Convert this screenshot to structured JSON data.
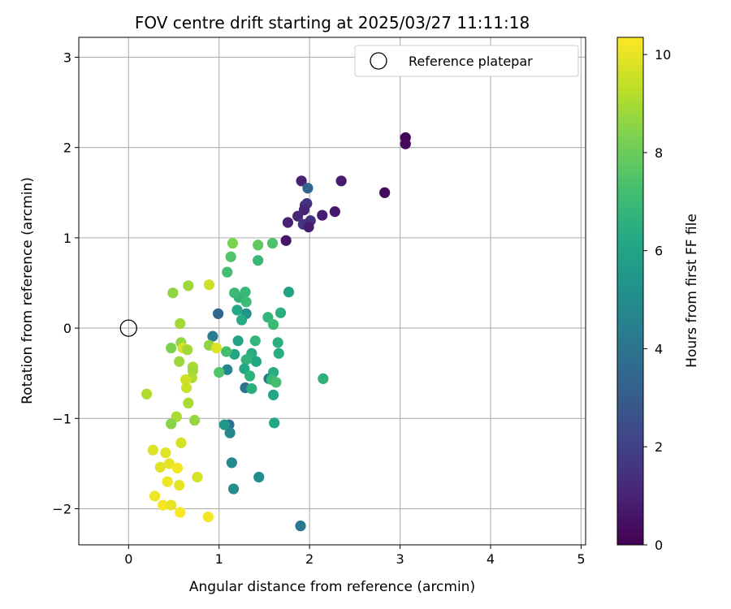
{
  "chart_data": {
    "type": "scatter",
    "title": "FOV centre drift starting at 2025/03/27 11:11:18",
    "xlabel": "Angular distance from reference (arcmin)",
    "ylabel": "Rotation from reference (arcmin)",
    "xlim": [
      -0.55,
      5.05
    ],
    "ylim": [
      -2.4,
      3.22
    ],
    "xticks": [
      0,
      1,
      2,
      3,
      4,
      5
    ],
    "xtick_labels": [
      "0",
      "1",
      "2",
      "3",
      "4",
      "5"
    ],
    "yticks": [
      -2,
      -1,
      0,
      1,
      2,
      3
    ],
    "ytick_labels": [
      "−2",
      "−1",
      "0",
      "1",
      "2",
      "3"
    ],
    "grid": true,
    "legend": {
      "placement": "top-right",
      "entries": [
        "Reference platepar"
      ]
    },
    "reference_point": {
      "name": "Reference platepar",
      "x": 0,
      "y": 0,
      "marker": "hollow-circle"
    },
    "colorbar": {
      "label": "Hours from first FF file",
      "colormap": "viridis",
      "range": [
        0,
        10.35
      ],
      "ticks": [
        0,
        2,
        4,
        6,
        8,
        10
      ],
      "tick_labels": [
        "0",
        "2",
        "4",
        "6",
        "8",
        "10"
      ]
    },
    "series": [
      {
        "color_by": "hours",
        "points": [
          {
            "x": 3.06,
            "y": 2.11,
            "c": 0.1
          },
          {
            "x": 3.06,
            "y": 2.04,
            "c": 0.2
          },
          {
            "x": 2.83,
            "y": 1.5,
            "c": 0.3
          },
          {
            "x": 2.35,
            "y": 1.63,
            "c": 0.8
          },
          {
            "x": 2.28,
            "y": 1.29,
            "c": 0.7
          },
          {
            "x": 2.14,
            "y": 1.25,
            "c": 0.9
          },
          {
            "x": 1.91,
            "y": 1.63,
            "c": 1.0
          },
          {
            "x": 1.95,
            "y": 1.36,
            "c": 1.3
          },
          {
            "x": 1.97,
            "y": 1.38,
            "c": 1.5
          },
          {
            "x": 1.94,
            "y": 1.31,
            "c": 1.1
          },
          {
            "x": 1.87,
            "y": 1.24,
            "c": 1.2
          },
          {
            "x": 2.01,
            "y": 1.19,
            "c": 1.4
          },
          {
            "x": 1.93,
            "y": 1.15,
            "c": 1.6
          },
          {
            "x": 1.99,
            "y": 1.12,
            "c": 0.8
          },
          {
            "x": 1.76,
            "y": 1.17,
            "c": 1.0
          },
          {
            "x": 1.74,
            "y": 0.97,
            "c": 0.6
          },
          {
            "x": 1.98,
            "y": 1.55,
            "c": 3.3
          },
          {
            "x": 0.99,
            "y": 0.16,
            "c": 3.4
          },
          {
            "x": 1.9,
            "y": -2.19,
            "c": 4.0
          },
          {
            "x": 0.93,
            "y": -0.09,
            "c": 4.3
          },
          {
            "x": 1.29,
            "y": -0.66,
            "c": 3.9
          },
          {
            "x": 1.11,
            "y": -1.07,
            "c": 3.8
          },
          {
            "x": 1.55,
            "y": -0.56,
            "c": 4.2
          },
          {
            "x": 1.12,
            "y": -1.16,
            "c": 4.8
          },
          {
            "x": 1.14,
            "y": -1.49,
            "c": 4.9
          },
          {
            "x": 1.16,
            "y": -1.78,
            "c": 5.0
          },
          {
            "x": 1.44,
            "y": -1.65,
            "c": 4.9
          },
          {
            "x": 1.06,
            "y": -1.07,
            "c": 5.4
          },
          {
            "x": 1.09,
            "y": -0.46,
            "c": 4.7
          },
          {
            "x": 1.21,
            "y": -0.14,
            "c": 6.0
          },
          {
            "x": 1.17,
            "y": -0.29,
            "c": 6.1
          },
          {
            "x": 1.3,
            "y": 0.16,
            "c": 5.2
          },
          {
            "x": 1.25,
            "y": 0.09,
            "c": 6.3
          },
          {
            "x": 1.2,
            "y": 0.2,
            "c": 6.2
          },
          {
            "x": 1.22,
            "y": 0.34,
            "c": 6.6
          },
          {
            "x": 1.17,
            "y": 0.39,
            "c": 7.0
          },
          {
            "x": 1.29,
            "y": 0.4,
            "c": 6.9
          },
          {
            "x": 1.3,
            "y": 0.29,
            "c": 7.1
          },
          {
            "x": 1.09,
            "y": 0.62,
            "c": 7.2
          },
          {
            "x": 1.13,
            "y": 0.79,
            "c": 7.5
          },
          {
            "x": 1.15,
            "y": 0.94,
            "c": 8.3
          },
          {
            "x": 1.43,
            "y": 0.92,
            "c": 7.8
          },
          {
            "x": 1.59,
            "y": 0.94,
            "c": 7.4
          },
          {
            "x": 1.43,
            "y": 0.75,
            "c": 6.9
          },
          {
            "x": 1.77,
            "y": 0.4,
            "c": 6.0
          },
          {
            "x": 1.68,
            "y": 0.17,
            "c": 6.5
          },
          {
            "x": 1.54,
            "y": 0.12,
            "c": 6.8
          },
          {
            "x": 1.6,
            "y": 0.04,
            "c": 7.0
          },
          {
            "x": 1.4,
            "y": -0.14,
            "c": 6.8
          },
          {
            "x": 1.65,
            "y": -0.16,
            "c": 6.5
          },
          {
            "x": 1.66,
            "y": -0.28,
            "c": 6.4
          },
          {
            "x": 1.36,
            "y": -0.28,
            "c": 6.3
          },
          {
            "x": 1.34,
            "y": -0.33,
            "c": 6.5
          },
          {
            "x": 1.41,
            "y": -0.37,
            "c": 6.2
          },
          {
            "x": 1.3,
            "y": -0.35,
            "c": 6.7
          },
          {
            "x": 1.28,
            "y": -0.45,
            "c": 6.2
          },
          {
            "x": 1.34,
            "y": -0.53,
            "c": 6.6
          },
          {
            "x": 1.6,
            "y": -0.49,
            "c": 6.4
          },
          {
            "x": 1.58,
            "y": -0.57,
            "c": 6.9
          },
          {
            "x": 1.63,
            "y": -0.6,
            "c": 7.2
          },
          {
            "x": 1.36,
            "y": -0.67,
            "c": 6.5
          },
          {
            "x": 1.6,
            "y": -0.74,
            "c": 6.1
          },
          {
            "x": 1.61,
            "y": -1.05,
            "c": 6.2
          },
          {
            "x": 2.15,
            "y": -0.56,
            "c": 6.6
          },
          {
            "x": 1.0,
            "y": -0.49,
            "c": 7.5
          },
          {
            "x": 1.08,
            "y": -0.26,
            "c": 7.2
          },
          {
            "x": 0.89,
            "y": -0.19,
            "c": 8.6
          },
          {
            "x": 0.97,
            "y": -0.22,
            "c": 9.8
          },
          {
            "x": 0.89,
            "y": 0.48,
            "c": 9.6
          },
          {
            "x": 0.66,
            "y": 0.47,
            "c": 8.8
          },
          {
            "x": 0.49,
            "y": 0.39,
            "c": 8.6
          },
          {
            "x": 0.57,
            "y": 0.05,
            "c": 8.9
          },
          {
            "x": 0.58,
            "y": -0.16,
            "c": 8.7
          },
          {
            "x": 0.6,
            "y": -0.22,
            "c": 9.7
          },
          {
            "x": 0.65,
            "y": -0.24,
            "c": 8.9
          },
          {
            "x": 0.47,
            "y": -0.22,
            "c": 8.3
          },
          {
            "x": 0.56,
            "y": -0.37,
            "c": 8.8
          },
          {
            "x": 0.71,
            "y": -0.43,
            "c": 9.0
          },
          {
            "x": 0.71,
            "y": -0.47,
            "c": 8.9
          },
          {
            "x": 0.7,
            "y": -0.55,
            "c": 9.1
          },
          {
            "x": 0.63,
            "y": -0.57,
            "c": 9.6
          },
          {
            "x": 0.64,
            "y": -0.66,
            "c": 9.5
          },
          {
            "x": 0.66,
            "y": -0.83,
            "c": 9.0
          },
          {
            "x": 0.73,
            "y": -1.02,
            "c": 8.7
          },
          {
            "x": 0.53,
            "y": -0.98,
            "c": 9.0
          },
          {
            "x": 0.47,
            "y": -1.06,
            "c": 8.5
          },
          {
            "x": 0.2,
            "y": -0.73,
            "c": 9.1
          },
          {
            "x": 0.58,
            "y": -1.27,
            "c": 9.7
          },
          {
            "x": 0.27,
            "y": -1.35,
            "c": 9.8
          },
          {
            "x": 0.41,
            "y": -1.38,
            "c": 9.9
          },
          {
            "x": 0.45,
            "y": -1.5,
            "c": 10.0
          },
          {
            "x": 0.35,
            "y": -1.54,
            "c": 9.9
          },
          {
            "x": 0.54,
            "y": -1.55,
            "c": 10.2
          },
          {
            "x": 0.76,
            "y": -1.65,
            "c": 9.7
          },
          {
            "x": 0.43,
            "y": -1.7,
            "c": 10.1
          },
          {
            "x": 0.56,
            "y": -1.74,
            "c": 10.0
          },
          {
            "x": 0.29,
            "y": -1.86,
            "c": 10.1
          },
          {
            "x": 0.38,
            "y": -1.96,
            "c": 10.2
          },
          {
            "x": 0.47,
            "y": -1.96,
            "c": 10.0
          },
          {
            "x": 0.57,
            "y": -2.04,
            "c": 10.3
          },
          {
            "x": 0.88,
            "y": -2.09,
            "c": 10.2
          }
        ]
      }
    ]
  }
}
